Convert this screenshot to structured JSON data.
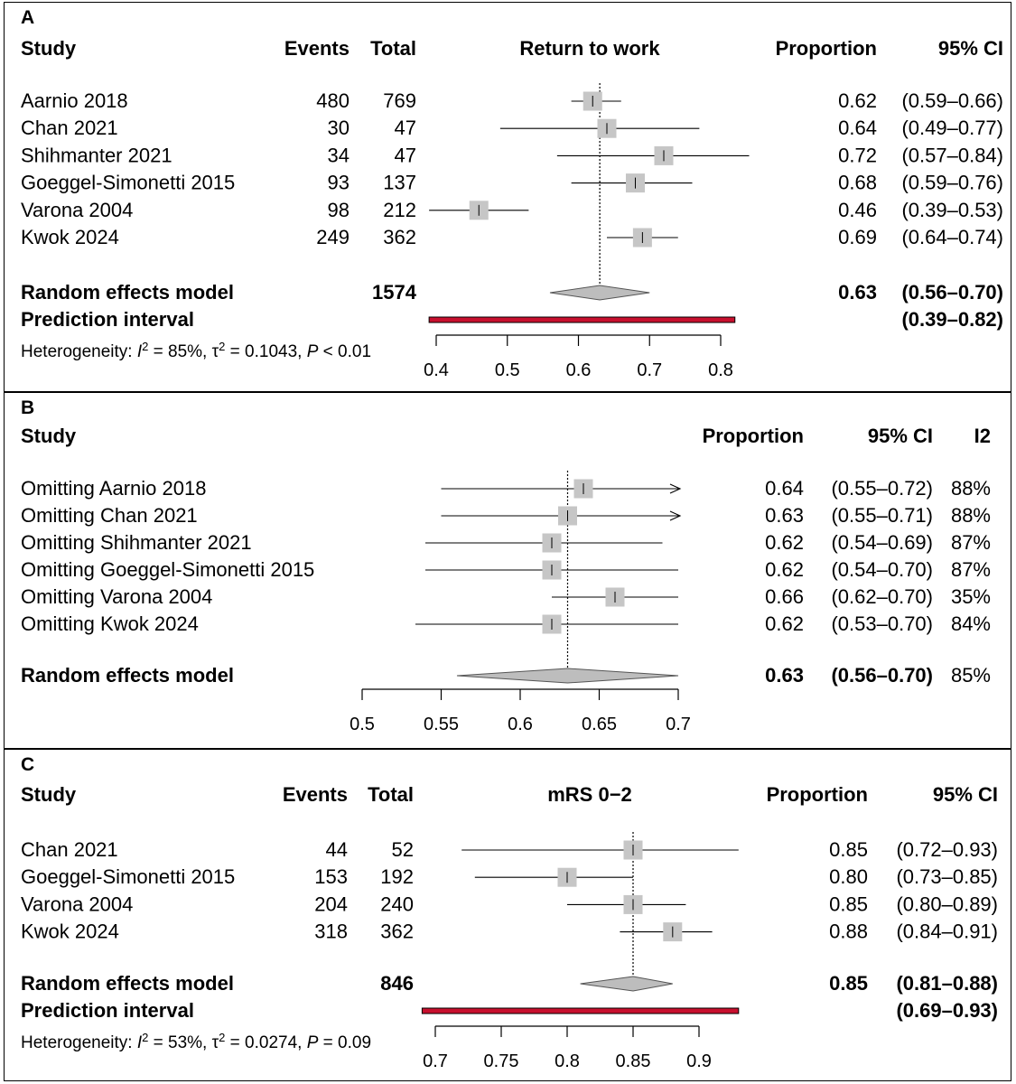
{
  "chart_data": [
    {
      "type": "forest",
      "panel_label": "A",
      "title": "Return to work",
      "headers": {
        "study": "Study",
        "events": "Events",
        "total": "Total",
        "proportion": "Proportion",
        "ci": "95% CI"
      },
      "xlim": [
        0.4,
        0.8
      ],
      "ticks": [
        0.4,
        0.5,
        0.6,
        0.7,
        0.8
      ],
      "tick_labels": [
        "0.4",
        "0.5",
        "0.6",
        "0.7",
        "0.8"
      ],
      "studies": [
        {
          "name": "Aarnio 2018",
          "events": "480",
          "total": "769",
          "est": 0.62,
          "lo": 0.59,
          "hi": 0.66,
          "prop": "0.62",
          "ci": "(0.59–0.66)"
        },
        {
          "name": "Chan 2021",
          "events": "30",
          "total": "47",
          "est": 0.64,
          "lo": 0.49,
          "hi": 0.77,
          "prop": "0.64",
          "ci": "(0.49–0.77)"
        },
        {
          "name": "Shihmanter 2021",
          "events": "34",
          "total": "47",
          "est": 0.72,
          "lo": 0.57,
          "hi": 0.84,
          "prop": "0.72",
          "ci": "(0.57–0.84)"
        },
        {
          "name": "Goeggel-Simonetti 2015",
          "events": "93",
          "total": "137",
          "est": 0.68,
          "lo": 0.59,
          "hi": 0.76,
          "prop": "0.68",
          "ci": "(0.59–0.76)"
        },
        {
          "name": "Varona 2004",
          "events": "98",
          "total": "212",
          "est": 0.46,
          "lo": 0.39,
          "hi": 0.53,
          "prop": "0.46",
          "ci": "(0.39–0.53)"
        },
        {
          "name": "Kwok 2024",
          "events": "249",
          "total": "362",
          "est": 0.69,
          "lo": 0.64,
          "hi": 0.74,
          "prop": "0.69",
          "ci": "(0.64–0.74)"
        }
      ],
      "pooled": {
        "label": "Random effects model",
        "total": "1574",
        "est": 0.63,
        "lo": 0.56,
        "hi": 0.7,
        "prop": "0.63",
        "ci": "(0.56–0.70)"
      },
      "prediction": {
        "label": "Prediction interval",
        "lo": 0.39,
        "hi": 0.82,
        "ci": "(0.39–0.82)"
      },
      "heterogeneity": {
        "prefix": "Heterogeneity: ",
        "i2_sym": "I",
        "i2_val": " = 85%, ",
        "tau_sym": "τ",
        "tau_val": " = 0.1043, ",
        "p_sym": "P",
        "p_val": " < 0.01",
        "sup": "2"
      }
    },
    {
      "type": "forest",
      "panel_label": "B",
      "headers": {
        "study": "Study",
        "proportion": "Proportion",
        "ci": "95% CI",
        "i2": "I2"
      },
      "xlim": [
        0.5,
        0.7
      ],
      "ticks": [
        0.5,
        0.55,
        0.6,
        0.65,
        0.7
      ],
      "tick_labels": [
        "0.5",
        "0.55",
        "0.6",
        "0.65",
        "0.7"
      ],
      "studies": [
        {
          "name": "Omitting Aarnio 2018",
          "est": 0.64,
          "lo": 0.55,
          "hi": 0.72,
          "arrow": true,
          "prop": "0.64",
          "ci": "(0.55–0.72)",
          "i2": "88%"
        },
        {
          "name": "Omitting Chan 2021",
          "est": 0.63,
          "lo": 0.55,
          "hi": 0.71,
          "arrow": true,
          "prop": "0.63",
          "ci": "(0.55–0.71)",
          "i2": "88%"
        },
        {
          "name": "Omitting Shihmanter 2021",
          "est": 0.62,
          "lo": 0.54,
          "hi": 0.69,
          "prop": "0.62",
          "ci": "(0.54–0.69)",
          "i2": "87%"
        },
        {
          "name": "Omitting Goeggel-Simonetti 2015",
          "est": 0.62,
          "lo": 0.54,
          "hi": 0.7,
          "prop": "0.62",
          "ci": "(0.54–0.70)",
          "i2": "87%"
        },
        {
          "name": "Omitting Varona 2004",
          "est": 0.66,
          "lo": 0.62,
          "hi": 0.7,
          "prop": "0.66",
          "ci": "(0.62–0.70)",
          "i2": "35%"
        },
        {
          "name": "Omitting Kwok 2024",
          "est": 0.62,
          "lo": 0.53,
          "hi": 0.7,
          "prop": "0.62",
          "ci": "(0.53–0.70)",
          "i2": "84%"
        }
      ],
      "pooled": {
        "label": "Random effects model",
        "est": 0.63,
        "lo": 0.56,
        "hi": 0.7,
        "prop": "0.63",
        "ci": "(0.56–0.70)",
        "i2": "85%"
      }
    },
    {
      "type": "forest",
      "panel_label": "C",
      "title": "mRS 0−2",
      "headers": {
        "study": "Study",
        "events": "Events",
        "total": "Total",
        "proportion": "Proportion",
        "ci": "95% CI"
      },
      "xlim": [
        0.7,
        0.9
      ],
      "ticks": [
        0.7,
        0.75,
        0.8,
        0.85,
        0.9
      ],
      "tick_labels": [
        "0.7",
        "0.75",
        "0.8",
        "0.85",
        "0.9"
      ],
      "studies": [
        {
          "name": "Chan 2021",
          "events": "44",
          "total": "52",
          "est": 0.85,
          "lo": 0.72,
          "hi": 0.93,
          "prop": "0.85",
          "ci": "(0.72–0.93)"
        },
        {
          "name": "Goeggel-Simonetti 2015",
          "events": "153",
          "total": "192",
          "est": 0.8,
          "lo": 0.73,
          "hi": 0.85,
          "prop": "0.80",
          "ci": "(0.73–0.85)"
        },
        {
          "name": "Varona 2004",
          "events": "204",
          "total": "240",
          "est": 0.85,
          "lo": 0.8,
          "hi": 0.89,
          "prop": "0.85",
          "ci": "(0.80–0.89)"
        },
        {
          "name": "Kwok 2024",
          "events": "318",
          "total": "362",
          "est": 0.88,
          "lo": 0.84,
          "hi": 0.91,
          "prop": "0.88",
          "ci": "(0.84–0.91)"
        }
      ],
      "pooled": {
        "label": "Random effects model",
        "total": "846",
        "est": 0.85,
        "lo": 0.81,
        "hi": 0.88,
        "prop": "0.85",
        "ci": "(0.81–0.88)"
      },
      "prediction": {
        "label": "Prediction interval",
        "lo": 0.69,
        "hi": 0.93,
        "ci": "(0.69–0.93)"
      },
      "heterogeneity": {
        "prefix": "Heterogeneity: ",
        "i2_sym": "I",
        "i2_val": " = 53%, ",
        "tau_sym": "τ",
        "tau_val": " = 0.0274, ",
        "p_sym": "P",
        "p_val": " = 0.09",
        "sup": "2"
      }
    }
  ],
  "colors": {
    "square": "#c6c6c6",
    "diamond": "#bdbdbd",
    "prediction_fill": "#c8102e",
    "line": "#000000"
  }
}
